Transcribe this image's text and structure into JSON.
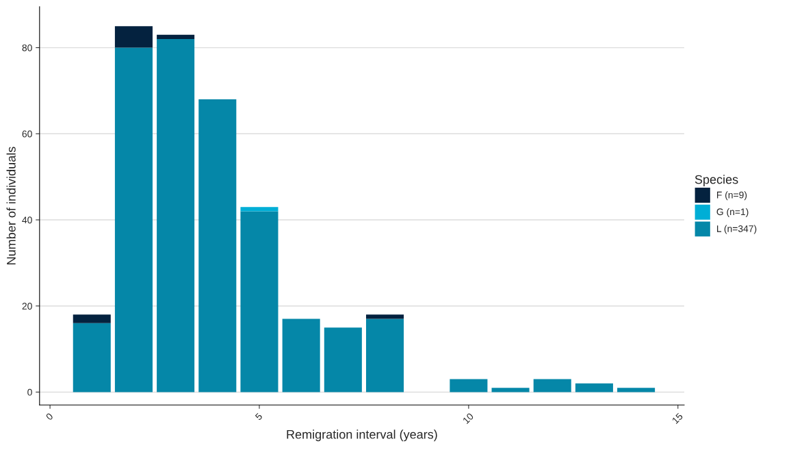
{
  "chart_data": {
    "type": "bar",
    "stacked": true,
    "xlabel": "Remigration interval (years)",
    "ylabel": "Number of individuals",
    "legend_title": "Species",
    "legend": "right",
    "grid": "y",
    "x": [
      1,
      2,
      3,
      4,
      5,
      6,
      7,
      8,
      9,
      10,
      11,
      12,
      13,
      14
    ],
    "series": [
      {
        "name": "L (n=347)",
        "color": "#0587a8",
        "values": [
          16,
          80,
          82,
          68,
          42,
          17,
          15,
          17,
          0,
          3,
          1,
          3,
          2,
          1
        ]
      },
      {
        "name": "G (n=1)",
        "color": "#00aed6",
        "values": [
          0,
          0,
          0,
          0,
          1,
          0,
          0,
          0,
          0,
          0,
          0,
          0,
          0,
          0
        ]
      },
      {
        "name": "F (n=9)",
        "color": "#04223f",
        "values": [
          2,
          5,
          1,
          0,
          0,
          0,
          0,
          1,
          0,
          0,
          0,
          0,
          0,
          0
        ]
      }
    ],
    "xlim": [
      -0.25,
      15.15
    ],
    "xticks": [
      0,
      5,
      10,
      15
    ],
    "ylim": [
      -3,
      89.5
    ],
    "yticks": [
      0,
      20,
      40,
      60,
      80
    ]
  }
}
